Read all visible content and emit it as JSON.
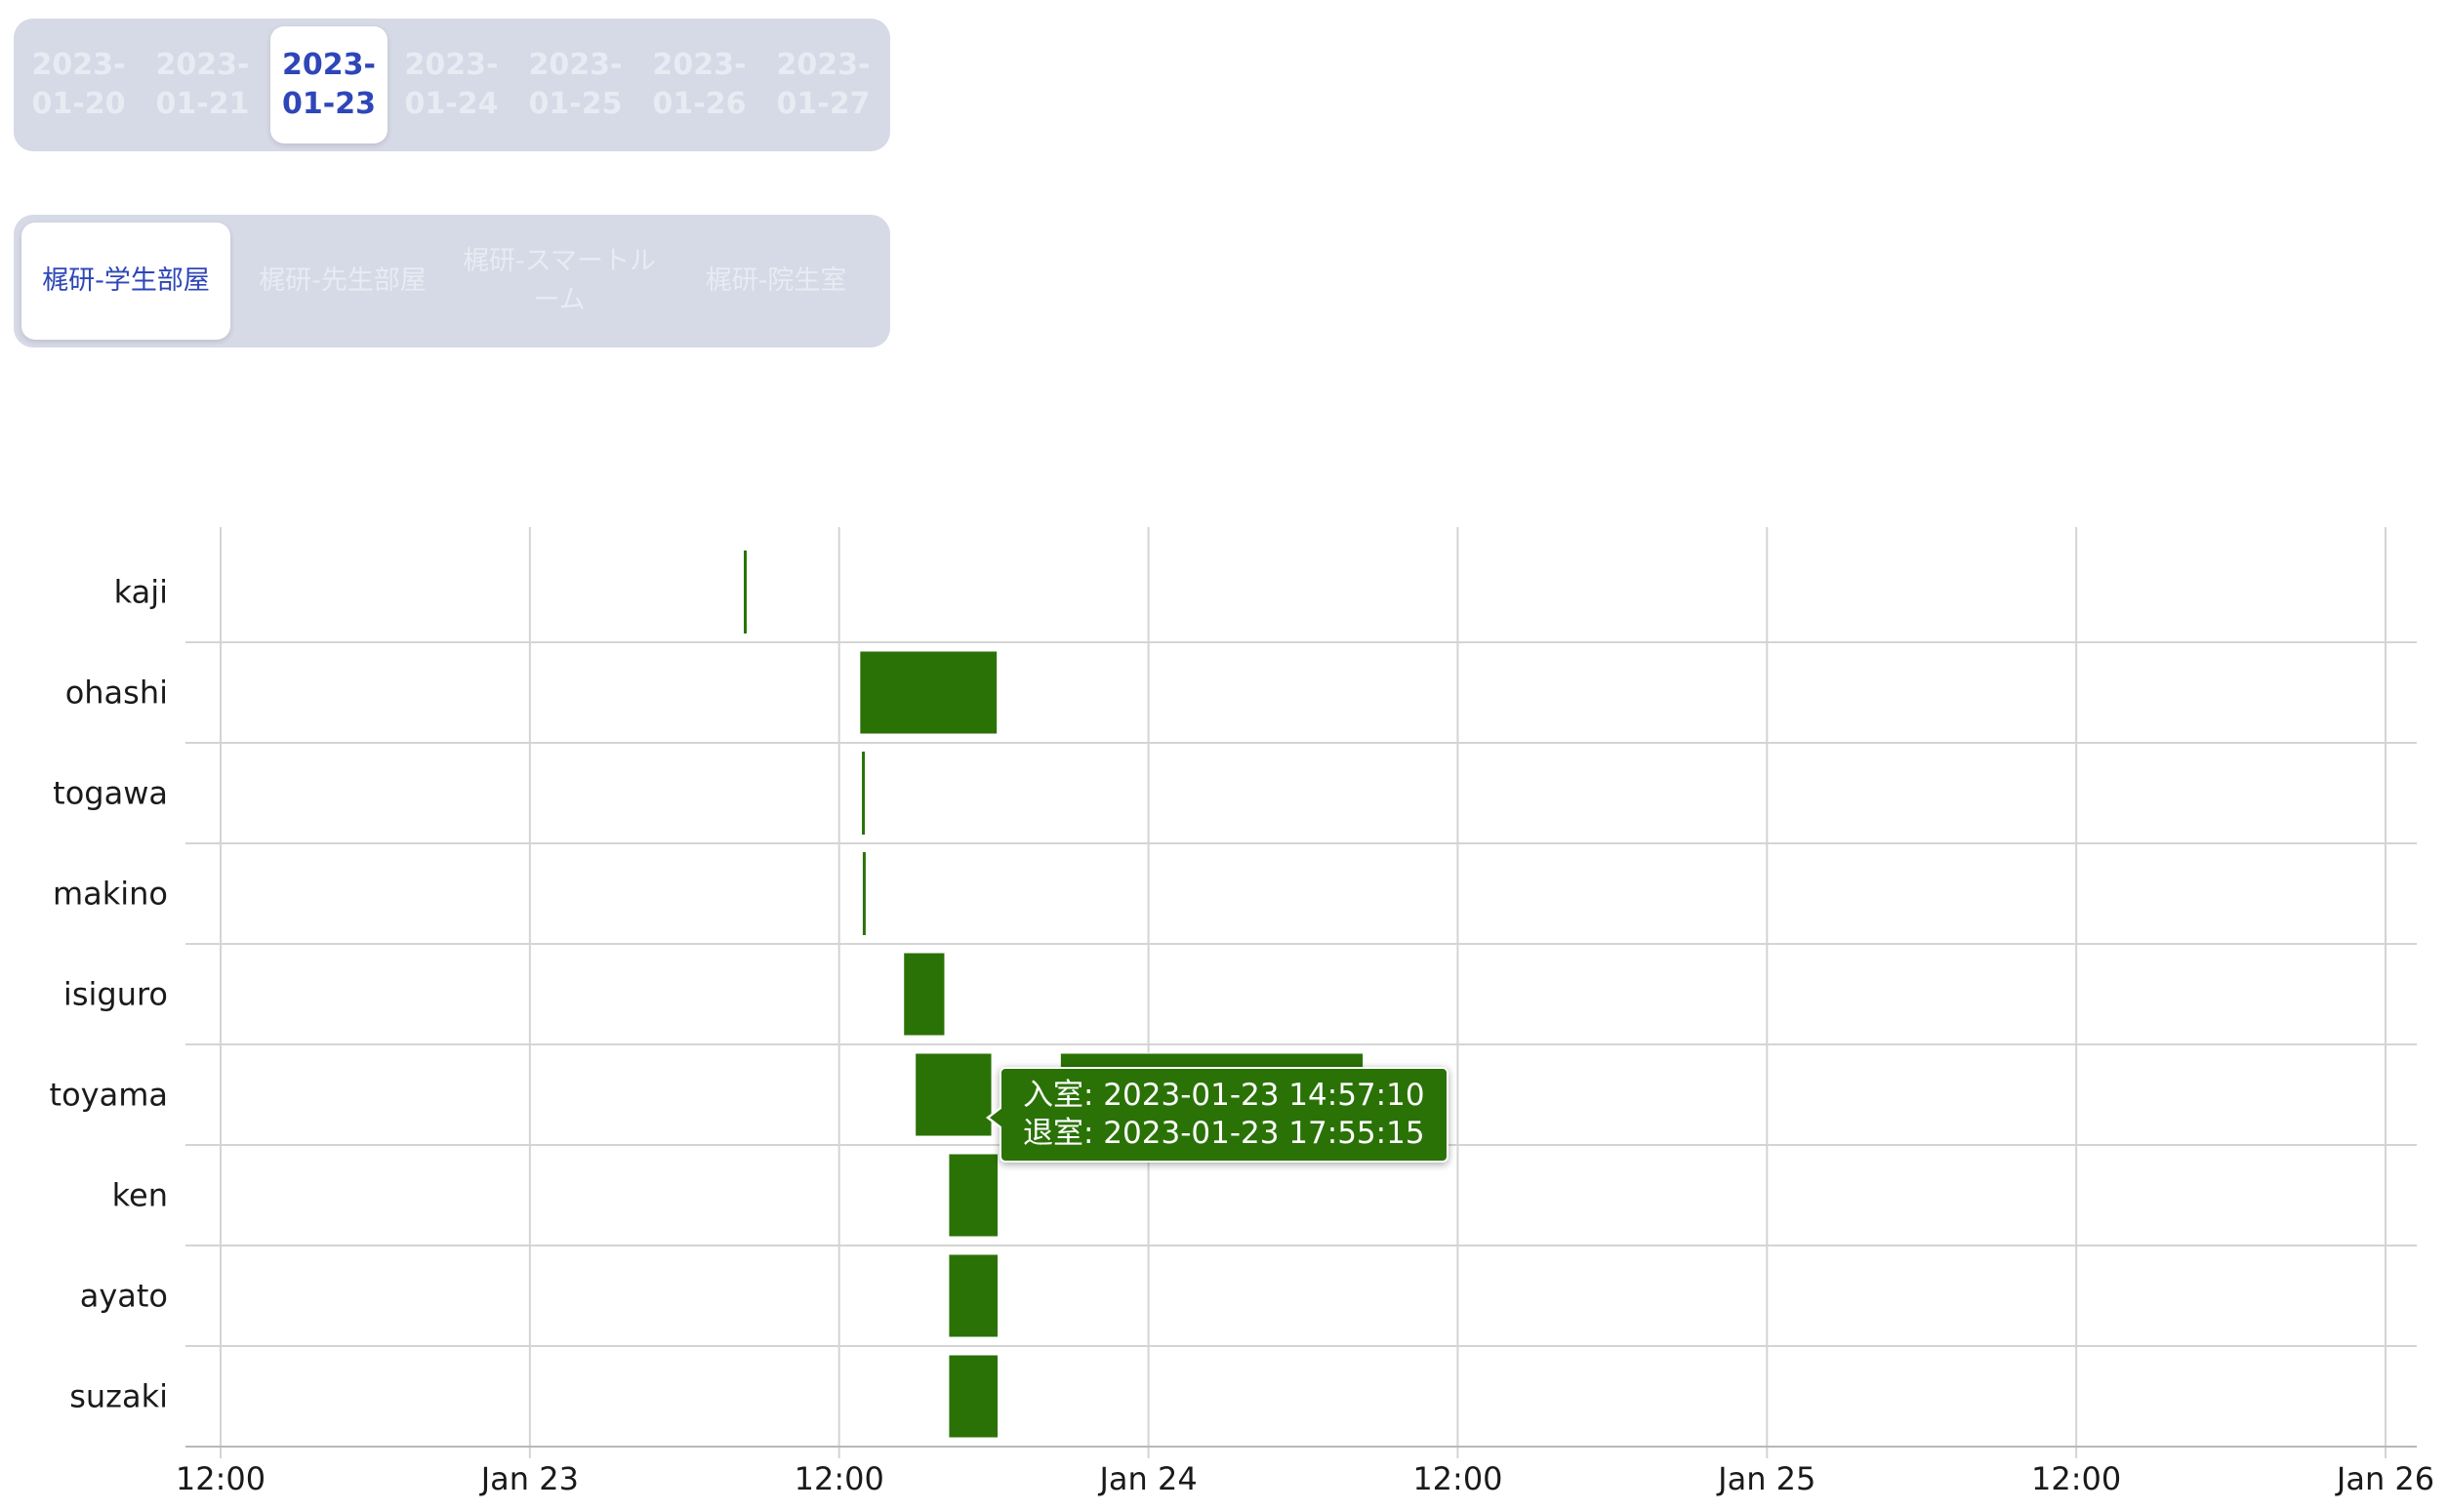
{
  "date_tabs": {
    "selected": "2023-01-23",
    "items": [
      {
        "line1": "2023-",
        "line2": "01-20"
      },
      {
        "line1": "2023-",
        "line2": "01-21"
      },
      {
        "line1": "2023-",
        "line2": "01-23"
      },
      {
        "line1": "2023-",
        "line2": "01-24"
      },
      {
        "line1": "2023-",
        "line2": "01-25"
      },
      {
        "line1": "2023-",
        "line2": "01-26"
      },
      {
        "line1": "2023-",
        "line2": "01-27"
      }
    ]
  },
  "room_tabs": {
    "selected": "梶研-学生部屋",
    "items": [
      {
        "label": "梶研-学生部屋"
      },
      {
        "label": "梶研-先生部屋"
      },
      {
        "label": "梶研-スマートルーム"
      },
      {
        "label": "梶研-院生室"
      }
    ]
  },
  "colors": {
    "bar": "#2a7206",
    "grid": "#d4d4d4",
    "tab_active_text": "#2e46b8",
    "tab_inactive_text": "#e9ebf3",
    "segment_bg": "#d6d9e6"
  },
  "chart_data": {
    "type": "timeline",
    "x_axis": {
      "type": "datetime",
      "range": [
        "2023-01-22T12:00",
        "2023-01-26T00:00"
      ],
      "ticks": [
        {
          "value": "2023-01-22T12:00",
          "label": "12:00"
        },
        {
          "value": "2023-01-23T00:00",
          "label": "Jan 23"
        },
        {
          "value": "2023-01-23T12:00",
          "label": "12:00"
        },
        {
          "value": "2023-01-24T00:00",
          "label": "Jan 24"
        },
        {
          "value": "2023-01-24T12:00",
          "label": "12:00"
        },
        {
          "value": "2023-01-25T00:00",
          "label": "Jan 25"
        },
        {
          "value": "2023-01-25T12:00",
          "label": "12:00"
        },
        {
          "value": "2023-01-26T00:00",
          "label": "Jan 26"
        }
      ]
    },
    "grid": true,
    "rows": [
      {
        "name": "kaji",
        "intervals": [
          {
            "start": "2023-01-23T08:18",
            "end": "2023-01-23T08:22"
          }
        ]
      },
      {
        "name": "ohashi",
        "intervals": [
          {
            "start": "2023-01-23T12:48",
            "end": "2023-01-23T18:08"
          }
        ]
      },
      {
        "name": "togawa",
        "intervals": [
          {
            "start": "2023-01-23T12:53",
            "end": "2023-01-23T12:57"
          }
        ]
      },
      {
        "name": "makino",
        "intervals": [
          {
            "start": "2023-01-23T12:55",
            "end": "2023-01-23T12:59"
          }
        ]
      },
      {
        "name": "isiguro",
        "intervals": [
          {
            "start": "2023-01-23T14:30",
            "end": "2023-01-23T16:06"
          }
        ]
      },
      {
        "name": "toyama",
        "intervals": [
          {
            "start": "2023-01-23T14:57:10",
            "end": "2023-01-23T17:55:15"
          },
          {
            "start": "2023-01-23T20:35",
            "end": "2023-01-24T08:20"
          }
        ]
      },
      {
        "name": "ken",
        "intervals": [
          {
            "start": "2023-01-23T16:15",
            "end": "2023-01-23T18:10"
          }
        ]
      },
      {
        "name": "ayato",
        "intervals": [
          {
            "start": "2023-01-23T16:15",
            "end": "2023-01-23T18:10"
          }
        ]
      },
      {
        "name": "suzaki",
        "intervals": [
          {
            "start": "2023-01-23T16:15",
            "end": "2023-01-23T18:10"
          }
        ]
      }
    ],
    "tooltip": {
      "row": "toyama",
      "line1": "入室: 2023-01-23 14:57:10",
      "line2": "退室: 2023-01-23 17:55:15"
    }
  }
}
